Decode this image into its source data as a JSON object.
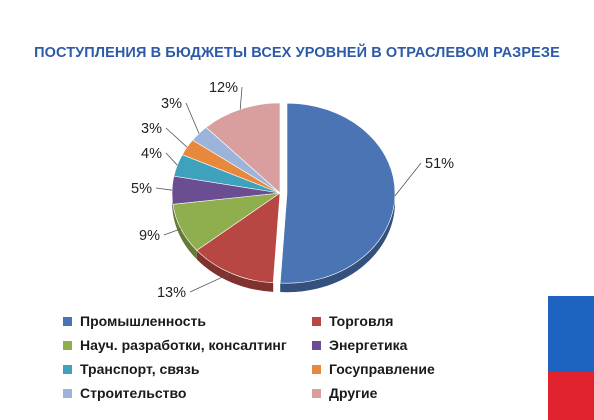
{
  "title": "ПОСТУПЛЕНИЯ В БЮДЖЕТЫ ВСЕХ УРОВНЕЙ В ОТРАСЛЕВОМ РАЗРЕЗЕ",
  "chart_data": {
    "type": "pie",
    "title": "ПОСТУПЛЕНИЯ В БЮДЖЕТЫ ВСЕХ УРОВНЕЙ В ОТРАСЛЕВОМ РАЗРЕЗЕ",
    "legend_position": "bottom",
    "slices": [
      {
        "label": "Промышленность",
        "value": 51,
        "display": "51%",
        "color": "#4a74b4",
        "exploded": true
      },
      {
        "label": "Торговля",
        "value": 13,
        "display": "13%",
        "color": "#b84743",
        "exploded": false
      },
      {
        "label": "Науч. разработки, консалтинг",
        "value": 9,
        "display": "9%",
        "color": "#8fae4e",
        "exploded": false
      },
      {
        "label": "Энергетика",
        "value": 5,
        "display": "5%",
        "color": "#6b4e91",
        "exploded": false
      },
      {
        "label": "Транспорт, связь",
        "value": 4,
        "display": "4%",
        "color": "#3ea2bd",
        "exploded": false
      },
      {
        "label": "Госуправление",
        "value": 3,
        "display": "3%",
        "color": "#e8883c",
        "exploded": false
      },
      {
        "label": "Строительство",
        "value": 3,
        "display": "3%",
        "color": "#9db4da",
        "exploded": false
      },
      {
        "label": "Другие",
        "value": 12,
        "display": "12%",
        "color": "#d89f9e",
        "exploded": false
      }
    ]
  },
  "decor": {
    "flag_colors": [
      "#ffffff",
      "#1f63c0",
      "#e0232e"
    ]
  }
}
